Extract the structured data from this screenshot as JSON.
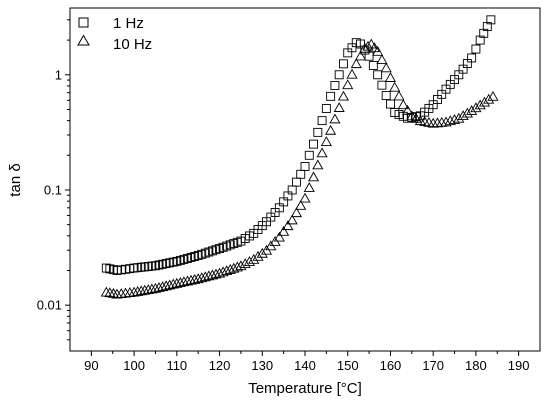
{
  "chart_data": {
    "type": "scatter",
    "title": "",
    "xlabel": "Temperature [°C]",
    "ylabel": "tan δ",
    "xlim": [
      85,
      195
    ],
    "ylim": [
      0.004,
      3.8
    ],
    "yscale": "log",
    "x_ticks": [
      90,
      100,
      110,
      120,
      130,
      140,
      150,
      160,
      170,
      180,
      190
    ],
    "x_tick_labels": [
      "90",
      "100",
      "110",
      "120",
      "130",
      "140",
      "150",
      "160",
      "170",
      "180",
      "190"
    ],
    "y_ticks": [
      0.01,
      0.1,
      1
    ],
    "y_tick_labels": [
      "0.01",
      "0.1",
      "1"
    ],
    "grid": false,
    "legend_position": "top-left",
    "series": [
      {
        "name": "1 Hz",
        "marker": "square",
        "x": [
          93.5,
          96,
          100,
          105,
          110,
          115,
          120,
          125,
          128,
          131,
          134,
          137,
          140,
          142,
          144,
          146,
          148,
          150,
          152,
          153,
          155,
          157,
          159,
          161,
          164,
          167,
          170,
          173,
          176,
          179,
          181,
          183.5
        ],
        "y": [
          0.021,
          0.02,
          0.021,
          0.022,
          0.024,
          0.027,
          0.031,
          0.036,
          0.042,
          0.053,
          0.07,
          0.1,
          0.16,
          0.25,
          0.4,
          0.65,
          1.0,
          1.55,
          1.9,
          1.85,
          1.45,
          1.0,
          0.66,
          0.47,
          0.42,
          0.44,
          0.55,
          0.75,
          1.0,
          1.4,
          2.0,
          3.0
        ]
      },
      {
        "name": "10 Hz",
        "marker": "triangle",
        "x": [
          93.5,
          96,
          100,
          105,
          110,
          115,
          120,
          125,
          128,
          131,
          134,
          137,
          140,
          142,
          144,
          146,
          148,
          150,
          152,
          154,
          155.5,
          157,
          159,
          161,
          163,
          165,
          167,
          170,
          173,
          176,
          179,
          182,
          184
        ],
        "y": [
          0.013,
          0.0125,
          0.013,
          0.014,
          0.0155,
          0.017,
          0.019,
          0.022,
          0.025,
          0.03,
          0.039,
          0.055,
          0.085,
          0.13,
          0.21,
          0.33,
          0.52,
          0.82,
          1.25,
          1.7,
          1.85,
          1.6,
          1.15,
          0.78,
          0.55,
          0.44,
          0.4,
          0.38,
          0.39,
          0.42,
          0.49,
          0.58,
          0.65
        ]
      }
    ]
  }
}
